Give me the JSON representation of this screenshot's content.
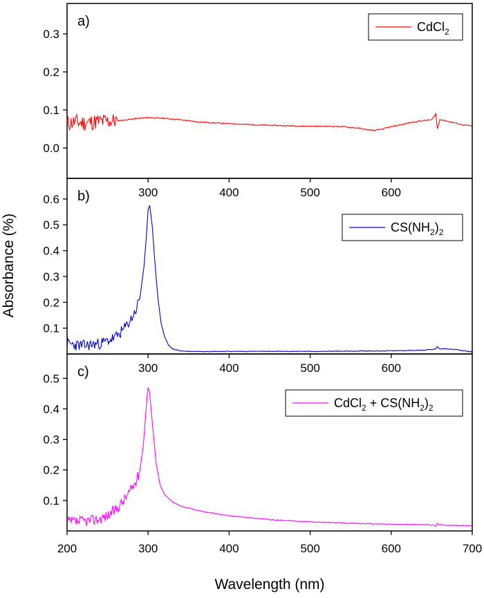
{
  "chart_data": {
    "type": "line",
    "xlabel": "Wavelength (nm)",
    "ylabel": "Absorbance (%)",
    "x_ticks": [
      200,
      300,
      400,
      500,
      600,
      700
    ],
    "xlim": [
      200,
      700
    ],
    "panels": [
      {
        "label": "a)",
        "ylim": [
          -0.08,
          0.38
        ],
        "y_ticks": [
          0.0,
          0.1,
          0.2,
          0.3
        ],
        "y_tick_labels": [
          "0.0",
          "0.1",
          "0.2",
          "0.3"
        ],
        "top_x_ticks": false,
        "legend": {
          "position": "top-right",
          "text": "CdCl",
          "sub1": "2",
          "mid": "",
          "sub2": "",
          "tail": ""
        },
        "color": "#ff0000",
        "noise": {
          "amp": 0.022,
          "end": 262,
          "seed": 11
        },
        "series": [
          {
            "name": "CdCl2",
            "x": [
              200,
              210,
              220,
              230,
              240,
              250,
              260,
              270,
              280,
              290,
              300,
              320,
              340,
              360,
              380,
              400,
              420,
              440,
              460,
              480,
              500,
              520,
              540,
              560,
              570,
              580,
              590,
              600,
              610,
              620,
              630,
              640,
              650,
              655,
              657,
              660,
              670,
              680,
              690,
              700
            ],
            "y": [
              0.065,
              0.068,
              0.066,
              0.068,
              0.07,
              0.07,
              0.072,
              0.073,
              0.076,
              0.078,
              0.08,
              0.078,
              0.074,
              0.069,
              0.066,
              0.064,
              0.062,
              0.06,
              0.059,
              0.058,
              0.057,
              0.057,
              0.056,
              0.052,
              0.048,
              0.046,
              0.05,
              0.056,
              0.06,
              0.065,
              0.069,
              0.072,
              0.074,
              0.09,
              0.05,
              0.075,
              0.07,
              0.065,
              0.06,
              0.058
            ]
          }
        ]
      },
      {
        "label": "b)",
        "ylim": [
          0.0,
          0.68
        ],
        "y_ticks": [
          0.1,
          0.2,
          0.3,
          0.4,
          0.5,
          0.6
        ],
        "y_tick_labels": [
          "0.1",
          "0.2",
          "0.3",
          "0.4",
          "0.5",
          "0.6"
        ],
        "top_x_ticks": true,
        "legend": {
          "position": "top-right",
          "text": "CS(NH",
          "sub1": "2",
          "mid": ")",
          "sub2": "2",
          "tail": ""
        },
        "color": "#0000cc",
        "noise": {
          "amp": 0.022,
          "end": 290,
          "seed": 23
        },
        "series": [
          {
            "name": "CS(NH2)2",
            "x": [
              200,
              210,
              220,
              230,
              240,
              250,
              260,
              270,
              280,
              285,
              290,
              295,
              298,
              300,
              302,
              305,
              308,
              312,
              316,
              320,
              325,
              330,
              340,
              350,
              400,
              500,
              600,
              640,
              650,
              655,
              657,
              660,
              670,
              680,
              690,
              700
            ],
            "y": [
              0.04,
              0.035,
              0.032,
              0.036,
              0.04,
              0.05,
              0.065,
              0.095,
              0.14,
              0.17,
              0.22,
              0.34,
              0.46,
              0.56,
              0.575,
              0.5,
              0.37,
              0.22,
              0.12,
              0.07,
              0.035,
              0.02,
              0.012,
              0.01,
              0.01,
              0.01,
              0.012,
              0.015,
              0.017,
              0.02,
              0.028,
              0.02,
              0.02,
              0.017,
              0.012,
              0.008
            ]
          }
        ]
      },
      {
        "label": "c)",
        "ylim": [
          0.0,
          0.58
        ],
        "y_ticks": [
          0.1,
          0.2,
          0.3,
          0.4,
          0.5
        ],
        "y_tick_labels": [
          "0.1",
          "0.2",
          "0.3",
          "0.4",
          "0.5"
        ],
        "top_x_ticks": true,
        "legend": {
          "position": "top-right",
          "text": "CdCl",
          "sub1": "2",
          "mid": " + CS(NH",
          "sub2": "2",
          "tail": ")",
          "sub3": "2"
        },
        "color": "#ff00ff",
        "noise": {
          "amp": 0.018,
          "end": 290,
          "seed": 37
        },
        "series": [
          {
            "name": "CdCl2 + CS(NH2)2",
            "x": [
              200,
              210,
              220,
              230,
              240,
              250,
              260,
              270,
              280,
              285,
              290,
              294,
              297,
              299,
              300,
              302,
              305,
              310,
              315,
              320,
              330,
              340,
              360,
              380,
              400,
              450,
              500,
              550,
              600,
              650,
              655,
              657,
              660,
              680,
              700
            ],
            "y": [
              0.03,
              0.03,
              0.032,
              0.035,
              0.04,
              0.05,
              0.07,
              0.1,
              0.14,
              0.16,
              0.2,
              0.28,
              0.38,
              0.45,
              0.47,
              0.45,
              0.36,
              0.22,
              0.15,
              0.12,
              0.095,
              0.082,
              0.068,
              0.058,
              0.05,
              0.037,
              0.03,
              0.025,
              0.022,
              0.02,
              0.016,
              0.024,
              0.02,
              0.018,
              0.017
            ]
          }
        ]
      }
    ]
  }
}
